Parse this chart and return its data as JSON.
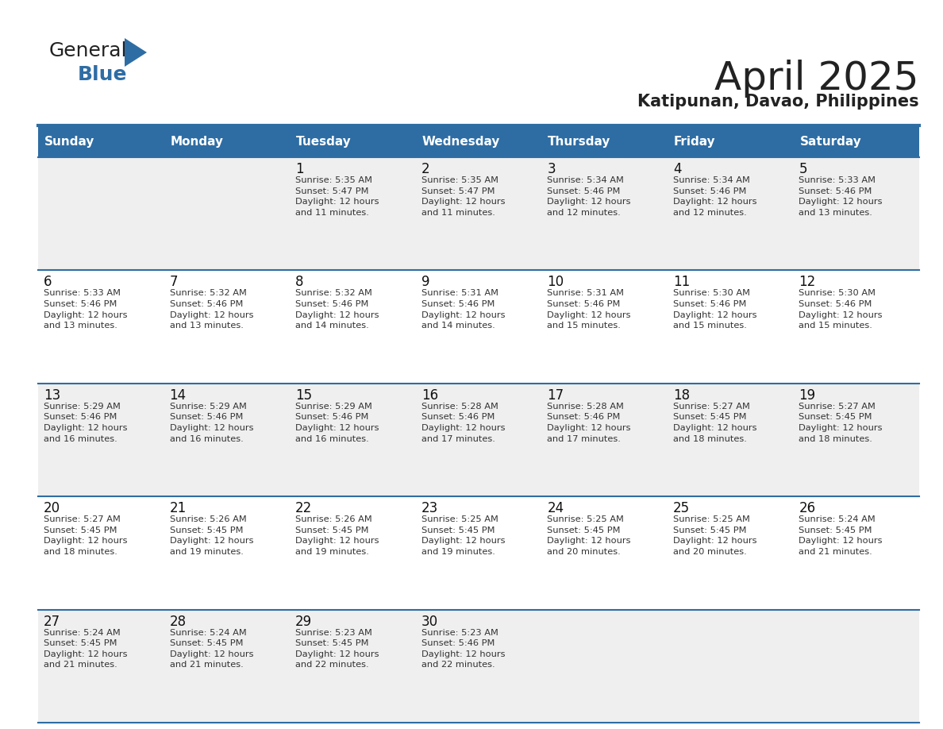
{
  "title": "April 2025",
  "subtitle": "Katipunan, Davao, Philippines",
  "header_bg": "#2E6DA4",
  "header_text_color": "#FFFFFF",
  "cell_bg_odd": "#EFEFEF",
  "cell_bg_even": "#FFFFFF",
  "border_color": "#2E6DA4",
  "day_headers": [
    "Sunday",
    "Monday",
    "Tuesday",
    "Wednesday",
    "Thursday",
    "Friday",
    "Saturday"
  ],
  "weeks": [
    [
      {
        "day": "",
        "text": ""
      },
      {
        "day": "",
        "text": ""
      },
      {
        "day": "1",
        "text": "Sunrise: 5:35 AM\nSunset: 5:47 PM\nDaylight: 12 hours\nand 11 minutes."
      },
      {
        "day": "2",
        "text": "Sunrise: 5:35 AM\nSunset: 5:47 PM\nDaylight: 12 hours\nand 11 minutes."
      },
      {
        "day": "3",
        "text": "Sunrise: 5:34 AM\nSunset: 5:46 PM\nDaylight: 12 hours\nand 12 minutes."
      },
      {
        "day": "4",
        "text": "Sunrise: 5:34 AM\nSunset: 5:46 PM\nDaylight: 12 hours\nand 12 minutes."
      },
      {
        "day": "5",
        "text": "Sunrise: 5:33 AM\nSunset: 5:46 PM\nDaylight: 12 hours\nand 13 minutes."
      }
    ],
    [
      {
        "day": "6",
        "text": "Sunrise: 5:33 AM\nSunset: 5:46 PM\nDaylight: 12 hours\nand 13 minutes."
      },
      {
        "day": "7",
        "text": "Sunrise: 5:32 AM\nSunset: 5:46 PM\nDaylight: 12 hours\nand 13 minutes."
      },
      {
        "day": "8",
        "text": "Sunrise: 5:32 AM\nSunset: 5:46 PM\nDaylight: 12 hours\nand 14 minutes."
      },
      {
        "day": "9",
        "text": "Sunrise: 5:31 AM\nSunset: 5:46 PM\nDaylight: 12 hours\nand 14 minutes."
      },
      {
        "day": "10",
        "text": "Sunrise: 5:31 AM\nSunset: 5:46 PM\nDaylight: 12 hours\nand 15 minutes."
      },
      {
        "day": "11",
        "text": "Sunrise: 5:30 AM\nSunset: 5:46 PM\nDaylight: 12 hours\nand 15 minutes."
      },
      {
        "day": "12",
        "text": "Sunrise: 5:30 AM\nSunset: 5:46 PM\nDaylight: 12 hours\nand 15 minutes."
      }
    ],
    [
      {
        "day": "13",
        "text": "Sunrise: 5:29 AM\nSunset: 5:46 PM\nDaylight: 12 hours\nand 16 minutes."
      },
      {
        "day": "14",
        "text": "Sunrise: 5:29 AM\nSunset: 5:46 PM\nDaylight: 12 hours\nand 16 minutes."
      },
      {
        "day": "15",
        "text": "Sunrise: 5:29 AM\nSunset: 5:46 PM\nDaylight: 12 hours\nand 16 minutes."
      },
      {
        "day": "16",
        "text": "Sunrise: 5:28 AM\nSunset: 5:46 PM\nDaylight: 12 hours\nand 17 minutes."
      },
      {
        "day": "17",
        "text": "Sunrise: 5:28 AM\nSunset: 5:46 PM\nDaylight: 12 hours\nand 17 minutes."
      },
      {
        "day": "18",
        "text": "Sunrise: 5:27 AM\nSunset: 5:45 PM\nDaylight: 12 hours\nand 18 minutes."
      },
      {
        "day": "19",
        "text": "Sunrise: 5:27 AM\nSunset: 5:45 PM\nDaylight: 12 hours\nand 18 minutes."
      }
    ],
    [
      {
        "day": "20",
        "text": "Sunrise: 5:27 AM\nSunset: 5:45 PM\nDaylight: 12 hours\nand 18 minutes."
      },
      {
        "day": "21",
        "text": "Sunrise: 5:26 AM\nSunset: 5:45 PM\nDaylight: 12 hours\nand 19 minutes."
      },
      {
        "day": "22",
        "text": "Sunrise: 5:26 AM\nSunset: 5:45 PM\nDaylight: 12 hours\nand 19 minutes."
      },
      {
        "day": "23",
        "text": "Sunrise: 5:25 AM\nSunset: 5:45 PM\nDaylight: 12 hours\nand 19 minutes."
      },
      {
        "day": "24",
        "text": "Sunrise: 5:25 AM\nSunset: 5:45 PM\nDaylight: 12 hours\nand 20 minutes."
      },
      {
        "day": "25",
        "text": "Sunrise: 5:25 AM\nSunset: 5:45 PM\nDaylight: 12 hours\nand 20 minutes."
      },
      {
        "day": "26",
        "text": "Sunrise: 5:24 AM\nSunset: 5:45 PM\nDaylight: 12 hours\nand 21 minutes."
      }
    ],
    [
      {
        "day": "27",
        "text": "Sunrise: 5:24 AM\nSunset: 5:45 PM\nDaylight: 12 hours\nand 21 minutes."
      },
      {
        "day": "28",
        "text": "Sunrise: 5:24 AM\nSunset: 5:45 PM\nDaylight: 12 hours\nand 21 minutes."
      },
      {
        "day": "29",
        "text": "Sunrise: 5:23 AM\nSunset: 5:45 PM\nDaylight: 12 hours\nand 22 minutes."
      },
      {
        "day": "30",
        "text": "Sunrise: 5:23 AM\nSunset: 5:46 PM\nDaylight: 12 hours\nand 22 minutes."
      },
      {
        "day": "",
        "text": ""
      },
      {
        "day": "",
        "text": ""
      },
      {
        "day": "",
        "text": ""
      }
    ]
  ],
  "logo_general_color": "#222222",
  "logo_blue_color": "#2E6DA4",
  "title_color": "#222222",
  "subtitle_color": "#222222",
  "fig_width": 11.88,
  "fig_height": 9.18,
  "dpi": 100
}
